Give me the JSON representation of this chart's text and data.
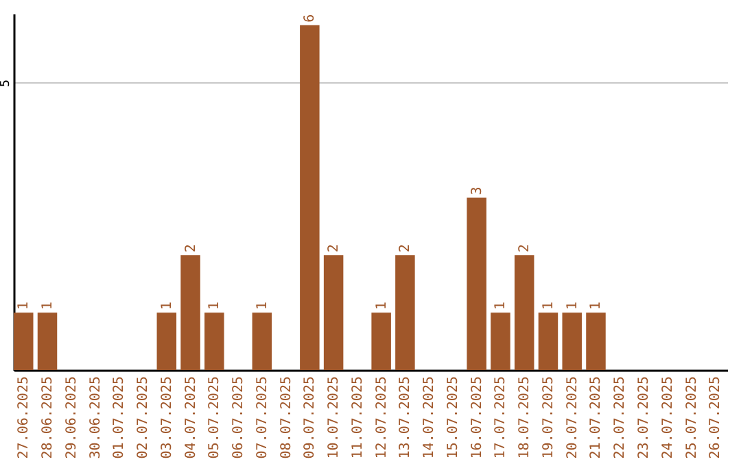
{
  "chart_data": {
    "type": "bar",
    "categories": [
      "27.06.2025",
      "28.06.2025",
      "29.06.2025",
      "30.06.2025",
      "01.07.2025",
      "02.07.2025",
      "03.07.2025",
      "04.07.2025",
      "05.07.2025",
      "06.07.2025",
      "07.07.2025",
      "08.07.2025",
      "09.07.2025",
      "10.07.2025",
      "11.07.2025",
      "12.07.2025",
      "13.07.2025",
      "14.07.2025",
      "15.07.2025",
      "16.07.2025",
      "17.07.2025",
      "18.07.2025",
      "19.07.2025",
      "20.07.2025",
      "21.07.2025",
      "22.07.2025",
      "23.07.2025",
      "24.07.2025",
      "25.07.2025",
      "26.07.2025"
    ],
    "values": [
      1,
      1,
      0,
      0,
      0,
      0,
      1,
      2,
      1,
      0,
      1,
      0,
      6,
      2,
      0,
      1,
      2,
      0,
      0,
      3,
      1,
      2,
      1,
      1,
      1,
      0,
      0,
      0,
      0,
      0
    ],
    "value_labels": [
      "1",
      "1",
      null,
      null,
      null,
      null,
      "1",
      "2",
      "1",
      null,
      "1",
      null,
      "6",
      "2",
      null,
      "1",
      "2",
      null,
      null,
      "3",
      "1",
      "2",
      "1",
      "1",
      "1",
      null,
      null,
      null,
      null,
      null
    ],
    "color": "#a0572a",
    "ylim": [
      0,
      6.2
    ],
    "yticks": [
      5
    ],
    "grid": "y"
  }
}
